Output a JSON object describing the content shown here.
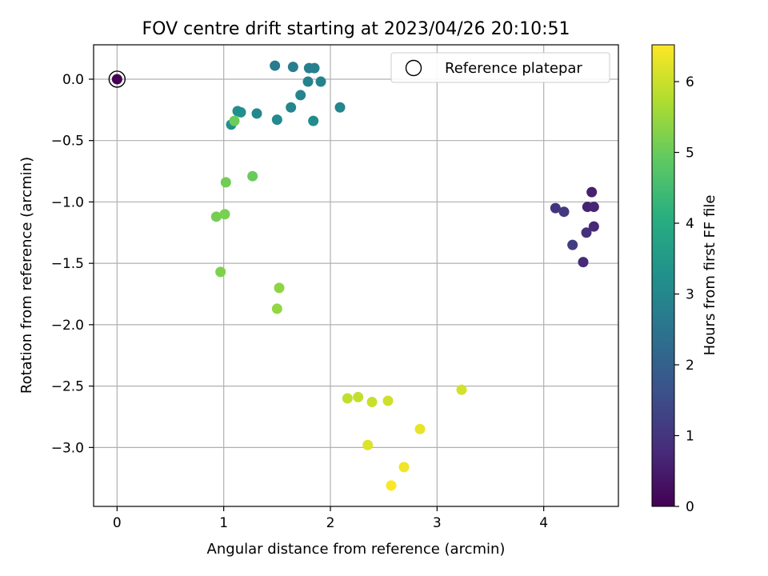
{
  "chart_data": {
    "type": "scatter",
    "title": "FOV centre drift starting at 2023/04/26 20:10:51",
    "xlabel": "Angular distance from reference (arcmin)",
    "ylabel": "Rotation from reference (arcmin)",
    "xlim": [
      -0.22,
      4.7
    ],
    "ylim": [
      -3.48,
      0.28
    ],
    "xticks": [
      0,
      1,
      2,
      3,
      4
    ],
    "xtick_labels": [
      "0",
      "1",
      "2",
      "3",
      "4"
    ],
    "yticks": [
      0.0,
      -0.5,
      -1.0,
      -1.5,
      -2.0,
      -2.5,
      -3.0
    ],
    "ytick_labels": [
      "0.0",
      "−0.5",
      "−1.0",
      "−1.5",
      "−2.0",
      "−2.5",
      "−3.0"
    ],
    "grid": true,
    "colormap": "viridis",
    "colorbar": {
      "label": "Hours from first FF file",
      "range": [
        0,
        6.52
      ],
      "ticks": [
        0,
        1,
        2,
        3,
        4,
        5,
        6
      ],
      "tick_labels": [
        "0",
        "1",
        "2",
        "3",
        "4",
        "5",
        "6"
      ]
    },
    "legend": {
      "position": "top-right",
      "entries": [
        "Reference platepar"
      ]
    },
    "reference_marker": {
      "x": 0,
      "y": 0
    },
    "points": [
      {
        "x": 0.0,
        "y": 0.0,
        "c": 0.0
      },
      {
        "x": 4.45,
        "y": -0.92,
        "c": 0.6
      },
      {
        "x": 4.41,
        "y": -1.04,
        "c": 0.65
      },
      {
        "x": 4.47,
        "y": -1.04,
        "c": 0.7
      },
      {
        "x": 4.47,
        "y": -1.2,
        "c": 0.75
      },
      {
        "x": 4.37,
        "y": -1.49,
        "c": 0.8
      },
      {
        "x": 4.4,
        "y": -1.25,
        "c": 0.9
      },
      {
        "x": 4.11,
        "y": -1.05,
        "c": 1.0
      },
      {
        "x": 4.19,
        "y": -1.08,
        "c": 1.1
      },
      {
        "x": 4.27,
        "y": -1.35,
        "c": 1.2
      },
      {
        "x": 1.48,
        "y": 0.11,
        "c": 2.7
      },
      {
        "x": 1.65,
        "y": 0.1,
        "c": 2.75
      },
      {
        "x": 1.8,
        "y": 0.09,
        "c": 2.8
      },
      {
        "x": 1.85,
        "y": 0.09,
        "c": 2.85
      },
      {
        "x": 1.79,
        "y": -0.02,
        "c": 2.9
      },
      {
        "x": 1.91,
        "y": -0.02,
        "c": 2.92
      },
      {
        "x": 1.72,
        "y": -0.13,
        "c": 2.95
      },
      {
        "x": 1.63,
        "y": -0.23,
        "c": 3.0
      },
      {
        "x": 2.09,
        "y": -0.23,
        "c": 3.0
      },
      {
        "x": 1.31,
        "y": -0.28,
        "c": 3.05
      },
      {
        "x": 1.5,
        "y": -0.33,
        "c": 3.1
      },
      {
        "x": 1.84,
        "y": -0.34,
        "c": 3.15
      },
      {
        "x": 1.13,
        "y": -0.26,
        "c": 3.2
      },
      {
        "x": 1.16,
        "y": -0.27,
        "c": 3.25
      },
      {
        "x": 1.07,
        "y": -0.37,
        "c": 3.3
      },
      {
        "x": 1.1,
        "y": -0.34,
        "c": 5.05
      },
      {
        "x": 1.27,
        "y": -0.79,
        "c": 5.0
      },
      {
        "x": 1.02,
        "y": -0.84,
        "c": 5.1
      },
      {
        "x": 0.93,
        "y": -1.12,
        "c": 5.15
      },
      {
        "x": 1.01,
        "y": -1.1,
        "c": 5.2
      },
      {
        "x": 0.97,
        "y": -1.57,
        "c": 5.25
      },
      {
        "x": 1.52,
        "y": -1.7,
        "c": 5.4
      },
      {
        "x": 1.5,
        "y": -1.87,
        "c": 5.45
      },
      {
        "x": 2.16,
        "y": -2.6,
        "c": 5.9
      },
      {
        "x": 2.26,
        "y": -2.59,
        "c": 5.95
      },
      {
        "x": 2.39,
        "y": -2.63,
        "c": 6.0
      },
      {
        "x": 2.54,
        "y": -2.62,
        "c": 6.05
      },
      {
        "x": 3.23,
        "y": -2.53,
        "c": 6.1
      },
      {
        "x": 2.35,
        "y": -2.98,
        "c": 6.2
      },
      {
        "x": 2.84,
        "y": -2.85,
        "c": 6.3
      },
      {
        "x": 2.69,
        "y": -3.16,
        "c": 6.4
      },
      {
        "x": 2.57,
        "y": -3.31,
        "c": 6.5
      }
    ]
  }
}
